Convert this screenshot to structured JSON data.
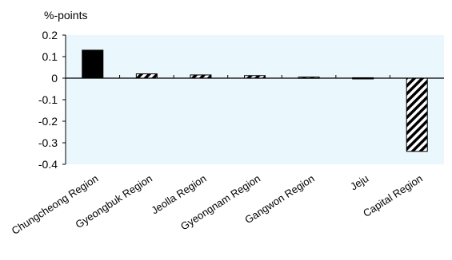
{
  "chart_data": {
    "type": "bar",
    "unit_label": "%-points",
    "title": "",
    "xlabel": "",
    "ylabel": "%-points",
    "categories": [
      "Chungcheong Region",
      "Gyeongbuk Region",
      "Jeolla Region",
      "Gyeongnam Region",
      "Gangwon Region",
      "Jeju",
      "Capital Region"
    ],
    "values": [
      0.13,
      0.02,
      0.015,
      0.012,
      0.005,
      0.002,
      -0.34
    ],
    "bar_styles": [
      "solid",
      "hatched",
      "hatched",
      "hatched",
      "hatched",
      "hatched",
      "hatched"
    ],
    "y_ticks": [
      "0.2",
      "0.1",
      "0",
      "-0.1",
      "-0.2",
      "-0.3",
      "-0.4"
    ],
    "ylim": [
      -0.4,
      0.2
    ],
    "grid": false,
    "legend": "none",
    "colors": {
      "plot_background": "#eaf7fd",
      "solid_bar": "#000000",
      "hatch_stroke": "#000000",
      "hatch_background": "#ffffff",
      "axis": "#000000"
    }
  }
}
